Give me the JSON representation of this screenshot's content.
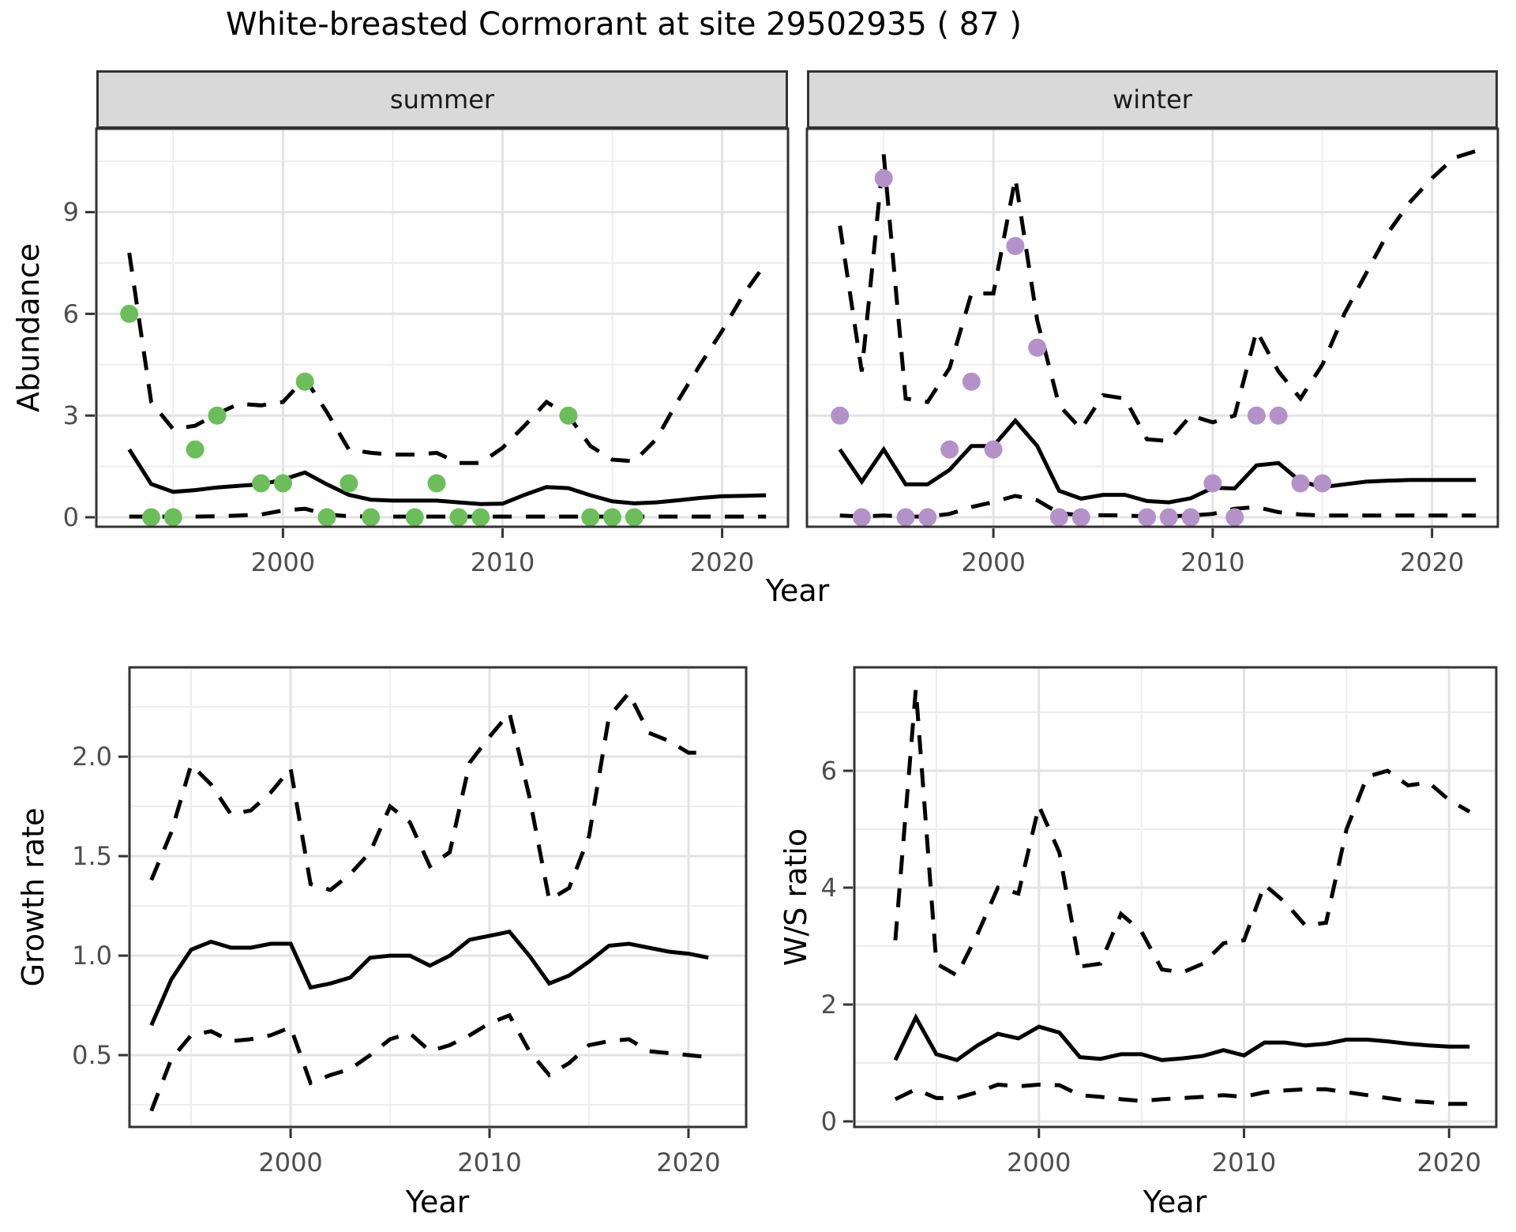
{
  "title": "White-breasted Cormorant at site 29502935 ( 87 )",
  "strips": {
    "summer": "summer",
    "winter": "winter"
  },
  "axis_titles": {
    "abundance": "Abundance",
    "year_top": "Year",
    "growth_rate": "Growth rate",
    "year_bottom_left": "Year",
    "ws_ratio": "W/S ratio",
    "year_bottom_right": "Year"
  },
  "colors": {
    "summer_points": "#6cbe5b",
    "winter_points": "#b591c9",
    "line": "#000000",
    "grid_major": "#e3e3e3",
    "grid_minor": "#ededed",
    "panel_border": "#333333",
    "tick": "#333333",
    "tick_label": "#4d4d4d",
    "strip_bg": "#d9d9d9"
  },
  "chart_data": [
    {
      "id": "abundance-summer",
      "type": "line",
      "facet": "summer",
      "xlabel": "Year",
      "ylabel": "Abundance",
      "xlim": [
        1991.5,
        2023.0
      ],
      "ylim": [
        -0.28,
        11.46
      ],
      "x_ticks": [
        2000,
        2010,
        2020
      ],
      "x_tick_labels": [
        "2000",
        "2010",
        "2020"
      ],
      "x_minor": [
        1995,
        2005,
        2015
      ],
      "y_ticks": [
        0,
        3,
        6,
        9
      ],
      "y_tick_labels": [
        "0",
        "3",
        "6",
        "9"
      ],
      "y_minor": [
        1.5,
        4.5,
        7.5,
        10.5
      ],
      "show_y_labels": true,
      "grid": true,
      "legend": "none",
      "years": [
        1993,
        1994,
        1995,
        1996,
        1997,
        1998,
        1999,
        2000,
        2001,
        2002,
        2003,
        2004,
        2005,
        2006,
        2007,
        2008,
        2009,
        2010,
        2011,
        2012,
        2013,
        2014,
        2015,
        2016,
        2017,
        2018,
        2019,
        2020,
        2021,
        2022
      ],
      "series": [
        {
          "name": "upper-ci",
          "style": "dashed",
          "values": [
            7.8,
            3.4,
            2.6,
            2.7,
            3.05,
            3.35,
            3.3,
            3.4,
            4.1,
            3.1,
            2.0,
            1.9,
            1.85,
            1.85,
            1.9,
            1.6,
            1.6,
            2.05,
            2.7,
            3.4,
            3.0,
            2.1,
            1.7,
            1.65,
            2.3,
            3.45,
            4.5,
            5.5,
            6.6,
            7.5
          ]
        },
        {
          "name": "lower-ci",
          "style": "dashed",
          "values": [
            0.02,
            0.02,
            0.02,
            0.02,
            0.03,
            0.05,
            0.08,
            0.2,
            0.25,
            0.08,
            0.03,
            0.02,
            0.02,
            0.02,
            0.02,
            0.02,
            0.02,
            0.02,
            0.02,
            0.02,
            0.02,
            0.02,
            0.02,
            0.02,
            0.02,
            0.02,
            0.02,
            0.02,
            0.02,
            0.02
          ]
        },
        {
          "name": "median",
          "style": "solid",
          "values": [
            2.0,
            0.98,
            0.75,
            0.8,
            0.88,
            0.93,
            0.97,
            1.11,
            1.32,
            0.97,
            0.66,
            0.52,
            0.49,
            0.49,
            0.49,
            0.44,
            0.39,
            0.4,
            0.66,
            0.89,
            0.86,
            0.65,
            0.47,
            0.41,
            0.44,
            0.5,
            0.57,
            0.62,
            0.63,
            0.65
          ]
        }
      ],
      "points": {
        "name": "summer-observations",
        "color": "#6cbe5b",
        "data": [
          [
            1993,
            6
          ],
          [
            1994,
            0
          ],
          [
            1995,
            0
          ],
          [
            1996,
            2
          ],
          [
            1997,
            3
          ],
          [
            1999,
            1
          ],
          [
            2000,
            1
          ],
          [
            2001,
            4
          ],
          [
            2002,
            0
          ],
          [
            2003,
            1
          ],
          [
            2004,
            0
          ],
          [
            2006,
            0
          ],
          [
            2007,
            1
          ],
          [
            2008,
            0
          ],
          [
            2009,
            0
          ],
          [
            2013,
            3
          ],
          [
            2014,
            0
          ],
          [
            2015,
            0
          ],
          [
            2016,
            0
          ]
        ]
      }
    },
    {
      "id": "abundance-winter",
      "type": "line",
      "facet": "winter",
      "xlabel": "Year",
      "ylabel": "Abundance",
      "xlim": [
        1991.5,
        2023.0
      ],
      "ylim": [
        -0.28,
        11.46
      ],
      "x_ticks": [
        2000,
        2010,
        2020
      ],
      "x_tick_labels": [
        "2000",
        "2010",
        "2020"
      ],
      "x_minor": [
        1995,
        2005,
        2015
      ],
      "y_ticks": [
        0,
        3,
        6,
        9
      ],
      "y_tick_labels": [
        "0",
        "3",
        "6",
        "9"
      ],
      "y_minor": [
        1.5,
        4.5,
        7.5,
        10.5
      ],
      "show_y_labels": false,
      "grid": true,
      "legend": "none",
      "years": [
        1993,
        1994,
        1995,
        1996,
        1997,
        1998,
        1999,
        2000,
        2001,
        2002,
        2003,
        2004,
        2005,
        2006,
        2007,
        2008,
        2009,
        2010,
        2011,
        2012,
        2013,
        2014,
        2015,
        2016,
        2017,
        2018,
        2019,
        2020,
        2021,
        2022
      ],
      "series": [
        {
          "name": "upper-ci",
          "style": "dashed",
          "values": [
            8.6,
            4.3,
            10.7,
            3.5,
            3.4,
            4.4,
            6.6,
            6.6,
            10.0,
            5.8,
            3.3,
            2.6,
            3.6,
            3.5,
            2.3,
            2.25,
            3.0,
            2.8,
            3.0,
            5.5,
            4.3,
            3.5,
            4.5,
            6.0,
            7.2,
            8.4,
            9.3,
            10.0,
            10.6,
            10.8
          ]
        },
        {
          "name": "lower-ci",
          "style": "dashed",
          "values": [
            0.05,
            0.02,
            0.05,
            0.02,
            0.02,
            0.1,
            0.3,
            0.45,
            0.63,
            0.5,
            0.12,
            0.06,
            0.06,
            0.05,
            0.03,
            0.03,
            0.05,
            0.1,
            0.25,
            0.3,
            0.15,
            0.08,
            0.05,
            0.05,
            0.05,
            0.05,
            0.05,
            0.05,
            0.05,
            0.05
          ]
        },
        {
          "name": "median",
          "style": "solid",
          "values": [
            2.0,
            1.05,
            2.0,
            0.97,
            0.97,
            1.4,
            2.1,
            2.1,
            2.85,
            2.1,
            0.78,
            0.55,
            0.66,
            0.66,
            0.48,
            0.44,
            0.56,
            0.87,
            0.85,
            1.53,
            1.6,
            1.06,
            0.89,
            0.97,
            1.05,
            1.08,
            1.1,
            1.1,
            1.1,
            1.1
          ]
        }
      ],
      "points": {
        "name": "winter-observations",
        "color": "#b591c9",
        "data": [
          [
            1993,
            3
          ],
          [
            1994,
            0
          ],
          [
            1995,
            10
          ],
          [
            1996,
            0
          ],
          [
            1997,
            0
          ],
          [
            1998,
            2
          ],
          [
            1999,
            4
          ],
          [
            2000,
            2
          ],
          [
            2001,
            8
          ],
          [
            2002,
            5
          ],
          [
            2003,
            0
          ],
          [
            2004,
            0
          ],
          [
            2007,
            0
          ],
          [
            2008,
            0
          ],
          [
            2009,
            0
          ],
          [
            2010,
            1
          ],
          [
            2011,
            0
          ],
          [
            2012,
            3
          ],
          [
            2013,
            3
          ],
          [
            2014,
            1
          ],
          [
            2015,
            1
          ]
        ]
      }
    },
    {
      "id": "growth-rate",
      "type": "line",
      "facet": null,
      "xlabel": "Year",
      "ylabel": "Growth rate",
      "xlim": [
        1991.9,
        2022.9
      ],
      "ylim": [
        0.139,
        2.449
      ],
      "x_ticks": [
        2000,
        2010,
        2020
      ],
      "x_tick_labels": [
        "2000",
        "2010",
        "2020"
      ],
      "x_minor": [
        1995,
        2005,
        2015
      ],
      "y_ticks": [
        0.5,
        1.0,
        1.5,
        2.0
      ],
      "y_tick_labels": [
        "0.5",
        "1.0",
        "1.5",
        "2.0"
      ],
      "y_minor": [
        0.25,
        0.75,
        1.25,
        1.75,
        2.25
      ],
      "show_y_labels": true,
      "grid": true,
      "legend": "none",
      "years": [
        1993,
        1994,
        1995,
        1996,
        1997,
        1998,
        1999,
        2000,
        2001,
        2002,
        2003,
        2004,
        2005,
        2006,
        2007,
        2008,
        2009,
        2010,
        2011,
        2012,
        2013,
        2014,
        2015,
        2016,
        2017,
        2018,
        2019,
        2020,
        2021
      ],
      "series": [
        {
          "name": "upper-ci",
          "style": "dashed",
          "values": [
            1.38,
            1.62,
            1.96,
            1.86,
            1.71,
            1.73,
            1.82,
            1.94,
            1.36,
            1.33,
            1.41,
            1.52,
            1.75,
            1.67,
            1.45,
            1.52,
            1.97,
            2.1,
            2.22,
            1.8,
            1.28,
            1.34,
            1.6,
            2.2,
            2.32,
            2.12,
            2.08,
            2.02,
            2.02
          ]
        },
        {
          "name": "lower-ci",
          "style": "dashed",
          "values": [
            0.22,
            0.48,
            0.6,
            0.62,
            0.57,
            0.58,
            0.6,
            0.64,
            0.36,
            0.4,
            0.43,
            0.5,
            0.58,
            0.61,
            0.52,
            0.55,
            0.6,
            0.66,
            0.7,
            0.52,
            0.4,
            0.46,
            0.55,
            0.57,
            0.58,
            0.52,
            0.51,
            0.5,
            0.49
          ]
        },
        {
          "name": "median",
          "style": "solid",
          "values": [
            0.65,
            0.88,
            1.03,
            1.07,
            1.04,
            1.04,
            1.06,
            1.06,
            0.84,
            0.86,
            0.89,
            0.99,
            1.0,
            1.0,
            0.95,
            1.0,
            1.08,
            1.1,
            1.12,
            1.0,
            0.86,
            0.9,
            0.97,
            1.05,
            1.06,
            1.04,
            1.02,
            1.01,
            0.99
          ]
        }
      ],
      "points": null
    },
    {
      "id": "ws-ratio",
      "type": "line",
      "facet": null,
      "xlabel": "Year",
      "ylabel": "W/S ratio",
      "xlim": [
        1991.0,
        2022.3
      ],
      "ylim": [
        -0.095,
        7.77
      ],
      "x_ticks": [
        2000,
        2010,
        2020
      ],
      "x_tick_labels": [
        "2000",
        "2010",
        "2020"
      ],
      "x_minor": [
        1995,
        2005,
        2015
      ],
      "y_ticks": [
        0,
        2,
        4,
        6
      ],
      "y_tick_labels": [
        "0",
        "2",
        "4",
        "6"
      ],
      "y_minor": [
        1,
        3,
        5,
        7
      ],
      "show_y_labels": true,
      "grid": true,
      "legend": "none",
      "years": [
        1993,
        1994,
        1995,
        1996,
        1997,
        1998,
        1999,
        2000,
        2001,
        2002,
        2003,
        2004,
        2005,
        2006,
        2007,
        2008,
        2009,
        2010,
        2011,
        2012,
        2013,
        2014,
        2015,
        2016,
        2017,
        2018,
        2019,
        2020,
        2021
      ],
      "series": [
        {
          "name": "upper-ci",
          "style": "dashed",
          "values": [
            3.1,
            7.4,
            2.7,
            2.5,
            3.2,
            4.0,
            3.9,
            5.4,
            4.6,
            2.65,
            2.7,
            3.55,
            3.25,
            2.6,
            2.55,
            2.7,
            3.05,
            3.1,
            4.05,
            3.75,
            3.35,
            3.4,
            5.0,
            5.9,
            6.0,
            5.75,
            5.8,
            5.5,
            5.3
          ]
        },
        {
          "name": "lower-ci",
          "style": "dashed",
          "values": [
            0.38,
            0.55,
            0.4,
            0.4,
            0.5,
            0.63,
            0.6,
            0.63,
            0.62,
            0.45,
            0.42,
            0.38,
            0.35,
            0.38,
            0.4,
            0.42,
            0.45,
            0.42,
            0.5,
            0.53,
            0.55,
            0.55,
            0.5,
            0.45,
            0.4,
            0.35,
            0.33,
            0.3,
            0.3
          ]
        },
        {
          "name": "median",
          "style": "solid",
          "values": [
            1.05,
            1.78,
            1.15,
            1.05,
            1.3,
            1.5,
            1.42,
            1.62,
            1.52,
            1.1,
            1.07,
            1.15,
            1.15,
            1.05,
            1.08,
            1.12,
            1.22,
            1.13,
            1.35,
            1.35,
            1.3,
            1.33,
            1.4,
            1.4,
            1.37,
            1.33,
            1.3,
            1.28,
            1.28
          ]
        }
      ],
      "points": null
    }
  ]
}
